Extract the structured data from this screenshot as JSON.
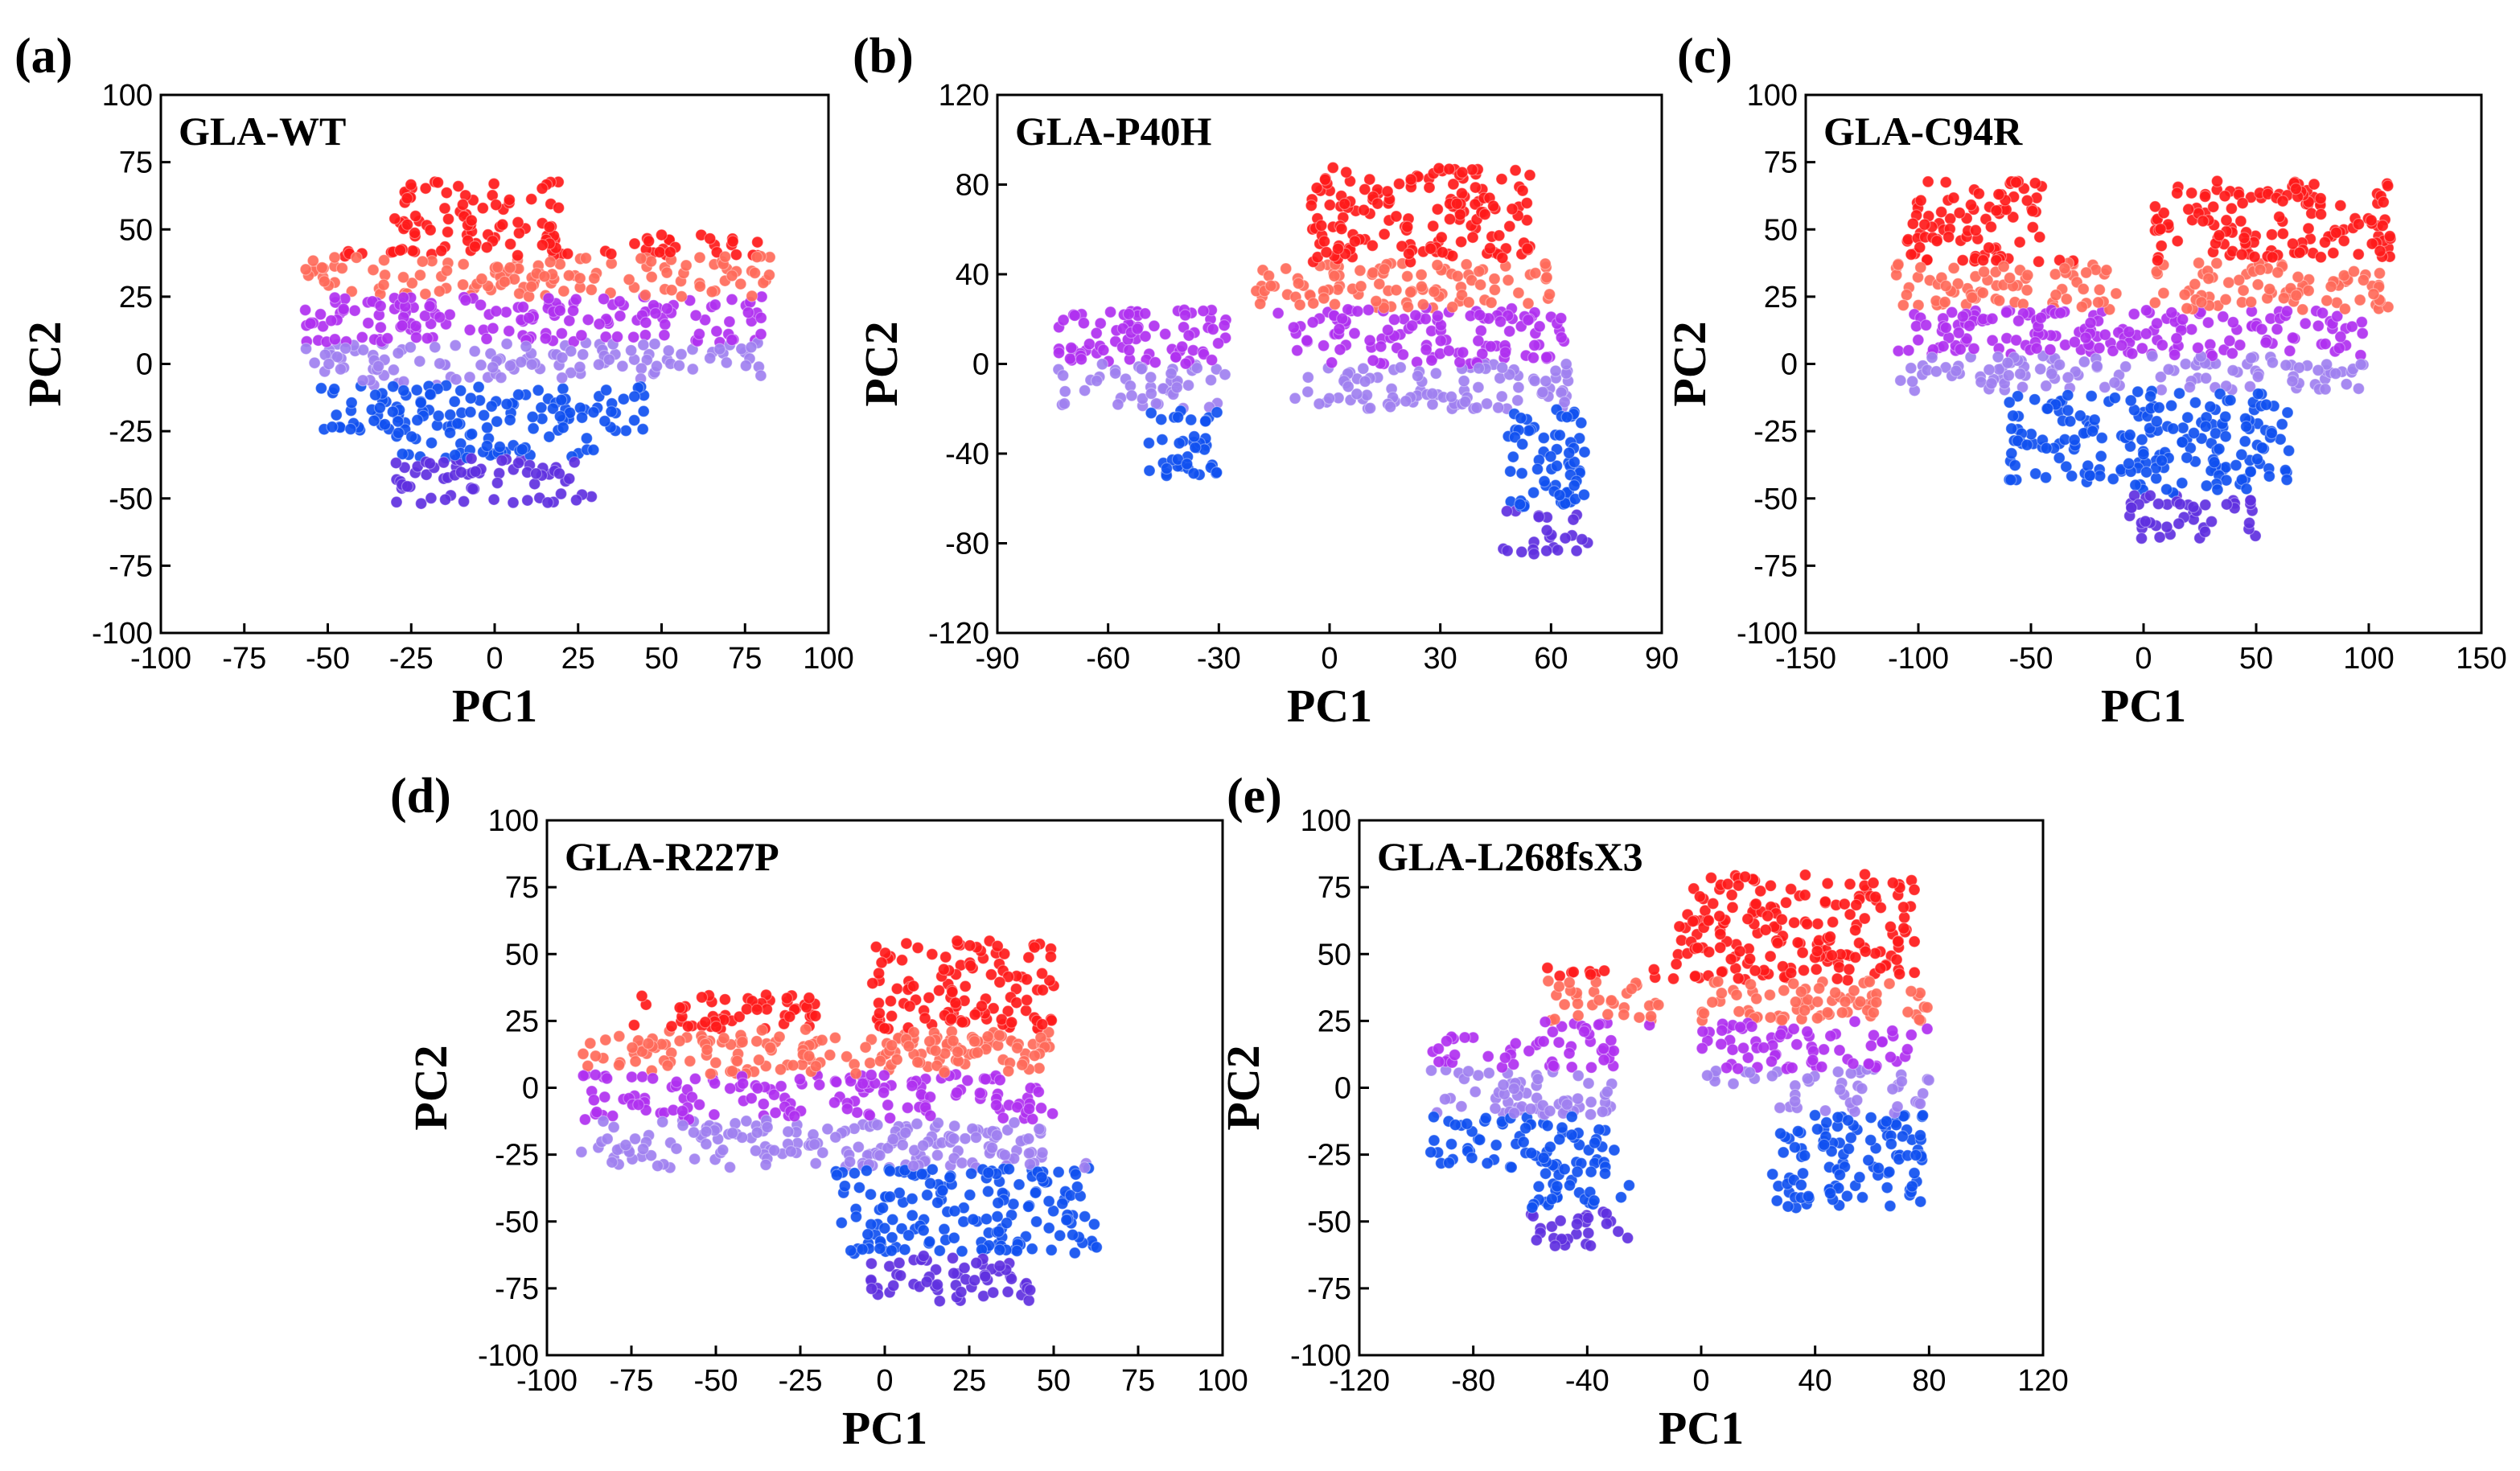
{
  "chart_data": [
    {
      "type": "scatter",
      "panel_label": "(a)",
      "title": "GLA-WT",
      "xlabel": "PC1",
      "ylabel": "PC2",
      "xlim": [
        -100,
        100
      ],
      "ylim": [
        -100,
        100
      ],
      "xticks": [
        "-100",
        "-75",
        "-50",
        "-25",
        "0",
        "25",
        "50",
        "75",
        "100"
      ],
      "yticks": [
        "-100",
        "-75",
        "-50",
        "-25",
        "0",
        "25",
        "50",
        "75",
        "100"
      ],
      "color_bands": [
        {
          "y_range": [
            40,
            70
          ],
          "color": "#ff1a1a"
        },
        {
          "y_range": [
            25,
            40
          ],
          "color": "#ff6a5a"
        },
        {
          "y_range": [
            8,
            25
          ],
          "color": "#b030f0"
        },
        {
          "y_range": [
            -8,
            8
          ],
          "color": "#a080f0"
        },
        {
          "y_range": [
            -35,
            -8
          ],
          "color": "#1050f0"
        },
        {
          "y_range": [
            -52,
            -35
          ],
          "color": "#6030e0"
        }
      ],
      "regions": [
        {
          "x": [
            -57,
            35
          ],
          "y": [
            25,
            42
          ]
        },
        {
          "x": [
            -30,
            20
          ],
          "y": [
            42,
            68
          ]
        },
        {
          "x": [
            -57,
            80
          ],
          "y": [
            -5,
            25
          ]
        },
        {
          "x": [
            -52,
            45
          ],
          "y": [
            -25,
            -5
          ]
        },
        {
          "x": [
            -30,
            30
          ],
          "y": [
            -52,
            -25
          ]
        },
        {
          "x": [
            40,
            83
          ],
          "y": [
            25,
            48
          ]
        }
      ]
    },
    {
      "type": "scatter",
      "panel_label": "(b)",
      "title": "GLA-P40H",
      "xlabel": "PC1",
      "ylabel": "PC2",
      "xlim": [
        -90,
        90
      ],
      "ylim": [
        -120,
        120
      ],
      "xticks": [
        "-90",
        "-60",
        "-30",
        "0",
        "30",
        "60",
        "90"
      ],
      "yticks": [
        "-120",
        "-80",
        "-40",
        "0",
        "40",
        "80",
        "120"
      ],
      "color_bands": [
        {
          "y_range": [
            45,
            90
          ],
          "color": "#ff1a1a"
        },
        {
          "y_range": [
            25,
            45
          ],
          "color": "#ff6a5a"
        },
        {
          "y_range": [
            0,
            25
          ],
          "color": "#b030f0"
        },
        {
          "y_range": [
            -20,
            0
          ],
          "color": "#a080f0"
        },
        {
          "y_range": [
            -65,
            -20
          ],
          "color": "#1050f0"
        },
        {
          "y_range": [
            -85,
            -65
          ],
          "color": "#6030e0"
        }
      ],
      "regions": [
        {
          "x": [
            -75,
            -28
          ],
          "y": [
            -20,
            25
          ]
        },
        {
          "x": [
            -50,
            -30
          ],
          "y": [
            -50,
            -20
          ]
        },
        {
          "x": [
            -20,
            60
          ],
          "y": [
            20,
            45
          ]
        },
        {
          "x": [
            -5,
            55
          ],
          "y": [
            45,
            88
          ]
        },
        {
          "x": [
            -10,
            65
          ],
          "y": [
            -20,
            22
          ]
        },
        {
          "x": [
            47,
            70
          ],
          "y": [
            -85,
            -20
          ]
        }
      ]
    },
    {
      "type": "scatter",
      "panel_label": "(c)",
      "title": "GLA-C94R",
      "xlabel": "PC1",
      "ylabel": "PC2",
      "xlim": [
        -150,
        150
      ],
      "ylim": [
        -100,
        100
      ],
      "xticks": [
        "-150",
        "-100",
        "-50",
        "0",
        "50",
        "100",
        "150"
      ],
      "yticks": [
        "-100",
        "-75",
        "-50",
        "-25",
        "0",
        "25",
        "50",
        "75",
        "100"
      ],
      "color_bands": [
        {
          "y_range": [
            38,
            70
          ],
          "color": "#ff1a1a"
        },
        {
          "y_range": [
            20,
            38
          ],
          "color": "#ff6a5a"
        },
        {
          "y_range": [
            3,
            20
          ],
          "color": "#b030f0"
        },
        {
          "y_range": [
            -10,
            3
          ],
          "color": "#a080f0"
        },
        {
          "y_range": [
            -48,
            -10
          ],
          "color": "#1050f0"
        },
        {
          "y_range": [
            -65,
            -48
          ],
          "color": "#6030e0"
        }
      ],
      "regions": [
        {
          "x": [
            -105,
            -45
          ],
          "y": [
            38,
            68
          ]
        },
        {
          "x": [
            -110,
            -10
          ],
          "y": [
            18,
            40
          ]
        },
        {
          "x": [
            -110,
            100
          ],
          "y": [
            -10,
            20
          ]
        },
        {
          "x": [
            5,
            110
          ],
          "y": [
            20,
            68
          ]
        },
        {
          "x": [
            -60,
            65
          ],
          "y": [
            -45,
            -10
          ]
        },
        {
          "x": [
            -10,
            50
          ],
          "y": [
            -65,
            -45
          ]
        }
      ]
    },
    {
      "type": "scatter",
      "panel_label": "(d)",
      "title": "GLA-R227P",
      "xlabel": "PC1",
      "ylabel": "PC2",
      "xlim": [
        -100,
        100
      ],
      "ylim": [
        -100,
        100
      ],
      "xticks": [
        "-100",
        "-75",
        "-50",
        "-25",
        "0",
        "25",
        "50",
        "75",
        "100"
      ],
      "yticks": [
        "-100",
        "-75",
        "-50",
        "-25",
        "0",
        "25",
        "50",
        "75",
        "100"
      ],
      "color_bands": [
        {
          "y_range": [
            22,
            55
          ],
          "color": "#ff1a1a"
        },
        {
          "y_range": [
            5,
            22
          ],
          "color": "#ff6a5a"
        },
        {
          "y_range": [
            -12,
            5
          ],
          "color": "#b030f0"
        },
        {
          "y_range": [
            -30,
            -12
          ],
          "color": "#a080f0"
        },
        {
          "y_range": [
            -62,
            -30
          ],
          "color": "#1050f0"
        },
        {
          "y_range": [
            -80,
            -62
          ],
          "color": "#6030e0"
        }
      ],
      "regions": [
        {
          "x": [
            -75,
            -20
          ],
          "y": [
            15,
            35
          ]
        },
        {
          "x": [
            -5,
            50
          ],
          "y": [
            15,
            55
          ]
        },
        {
          "x": [
            -90,
            50
          ],
          "y": [
            -5,
            20
          ]
        },
        {
          "x": [
            -90,
            50
          ],
          "y": [
            -30,
            -5
          ]
        },
        {
          "x": [
            -15,
            63
          ],
          "y": [
            -62,
            -28
          ]
        },
        {
          "x": [
            -5,
            45
          ],
          "y": [
            -80,
            -60
          ]
        }
      ]
    },
    {
      "type": "scatter",
      "panel_label": "(e)",
      "title": "GLA-L268fsX3",
      "xlabel": "PC1",
      "ylabel": "PC2",
      "xlim": [
        -120,
        120
      ],
      "ylim": [
        -100,
        100
      ],
      "xticks": [
        "-120",
        "-80",
        "-40",
        "0",
        "40",
        "80",
        "120"
      ],
      "yticks": [
        "-100",
        "-75",
        "-50",
        "-25",
        "0",
        "25",
        "50",
        "75",
        "100"
      ],
      "color_bands": [
        {
          "y_range": [
            40,
            80
          ],
          "color": "#ff1a1a"
        },
        {
          "y_range": [
            25,
            40
          ],
          "color": "#ff6a5a"
        },
        {
          "y_range": [
            7,
            25
          ],
          "color": "#b030f0"
        },
        {
          "y_range": [
            -10,
            7
          ],
          "color": "#a080f0"
        },
        {
          "y_range": [
            -45,
            -10
          ],
          "color": "#1050f0"
        },
        {
          "y_range": [
            -67,
            -45
          ],
          "color": "#6030e0"
        }
      ],
      "regions": [
        {
          "x": [
            -95,
            -30
          ],
          "y": [
            -30,
            20
          ]
        },
        {
          "x": [
            -60,
            -25
          ],
          "y": [
            -60,
            -30
          ]
        },
        {
          "x": [
            -55,
            -15
          ],
          "y": [
            20,
            45
          ]
        },
        {
          "x": [
            -10,
            75
          ],
          "y": [
            40,
            80
          ]
        },
        {
          "x": [
            0,
            80
          ],
          "y": [
            0,
            40
          ]
        },
        {
          "x": [
            25,
            78
          ],
          "y": [
            -45,
            0
          ]
        }
      ]
    }
  ]
}
